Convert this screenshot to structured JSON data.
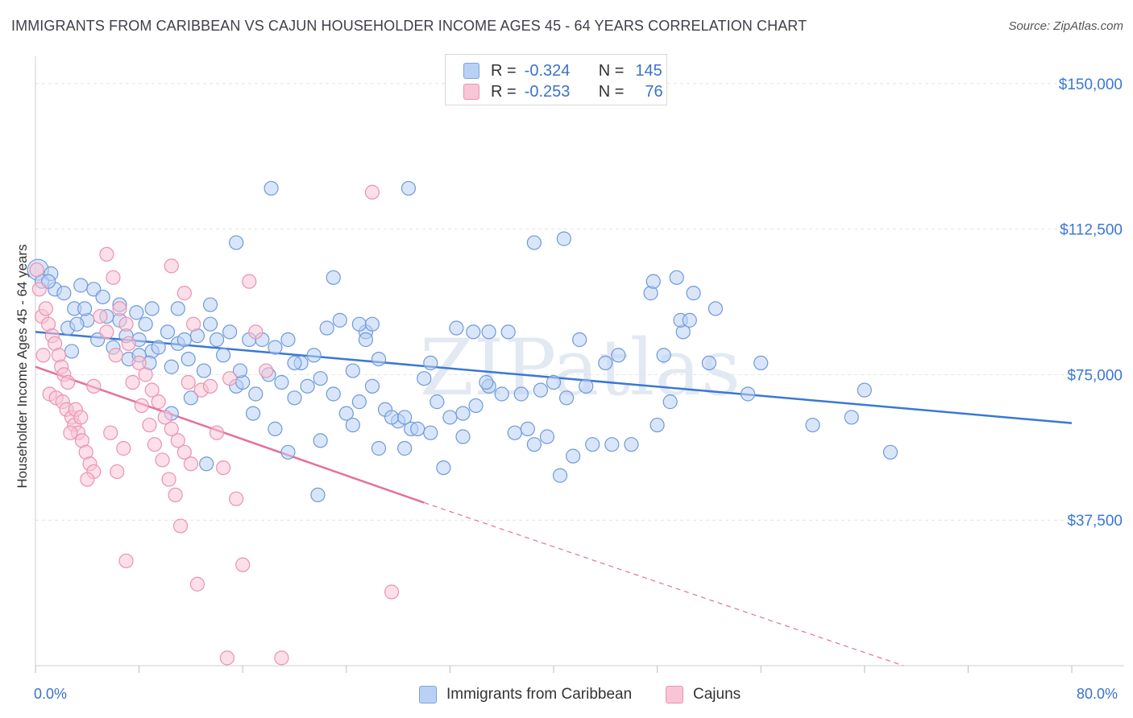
{
  "title": "IMMIGRANTS FROM CARIBBEAN VS CAJUN HOUSEHOLDER INCOME AGES 45 - 64 YEARS CORRELATION CHART",
  "source": "Source: ZipAtlas.com",
  "watermark": "ZIPatlas",
  "legend": {
    "r_label": "R =",
    "n_label": "N =",
    "rows": [
      {
        "r": "-0.324",
        "n": "145",
        "color": "#7ba3de"
      },
      {
        "r": "-0.253",
        "n": "76",
        "color": "#e993b2"
      }
    ]
  },
  "colors": {
    "blue": "#3a78d4",
    "pink": "#e4709a",
    "blue_fill": "#b9d1f5",
    "pink_fill": "#f9c5d6"
  },
  "chart_data": {
    "type": "scatter",
    "ylabel": "Householder Income Ages 45 - 64 years",
    "xlim": [
      0,
      80
    ],
    "ylim": [
      0,
      157000
    ],
    "x_tick_labels": [
      "0.0%",
      "80.0%"
    ],
    "y_ticks": [
      37500,
      75000,
      112500,
      150000
    ],
    "y_tick_labels": [
      "$37,500",
      "$75,000",
      "$112,500",
      "$150,000"
    ],
    "grid": true,
    "series": [
      {
        "name": "Immigrants from Caribbean",
        "color": "#3a78d4",
        "trend": {
          "x": [
            0,
            80
          ],
          "y": [
            86000,
            62500
          ]
        },
        "points": [
          [
            0.2,
            102000
          ],
          [
            0.5,
            99000
          ],
          [
            1.2,
            101000
          ],
          [
            1.5,
            97000
          ],
          [
            1.0,
            99000
          ],
          [
            3.5,
            98000
          ],
          [
            4.5,
            97000
          ],
          [
            5.2,
            95000
          ],
          [
            3.0,
            92000
          ],
          [
            4.0,
            89000
          ],
          [
            5.5,
            90000
          ],
          [
            2.5,
            87000
          ],
          [
            3.2,
            88000
          ],
          [
            6.5,
            89000
          ],
          [
            7.0,
            85000
          ],
          [
            7.8,
            91000
          ],
          [
            8.5,
            88000
          ],
          [
            8.0,
            84000
          ],
          [
            9.0,
            81000
          ],
          [
            10.2,
            86000
          ],
          [
            11.0,
            83000
          ],
          [
            12.5,
            85000
          ],
          [
            13.5,
            88000
          ],
          [
            14.0,
            84000
          ],
          [
            15.0,
            86000
          ],
          [
            16.5,
            84000
          ],
          [
            2.8,
            81000
          ],
          [
            4.8,
            84000
          ],
          [
            6.0,
            82000
          ],
          [
            7.2,
            79000
          ],
          [
            8.8,
            78000
          ],
          [
            10.5,
            77000
          ],
          [
            11.8,
            79000
          ],
          [
            13.0,
            76000
          ],
          [
            14.5,
            80000
          ],
          [
            15.5,
            72000
          ],
          [
            16.0,
            73000
          ],
          [
            17.0,
            70000
          ],
          [
            18.0,
            75000
          ],
          [
            19.0,
            73000
          ],
          [
            20.0,
            69000
          ],
          [
            21.0,
            72000
          ],
          [
            22.0,
            74000
          ],
          [
            23.0,
            70000
          ],
          [
            24.0,
            65000
          ],
          [
            25.0,
            68000
          ],
          [
            26.0,
            72000
          ],
          [
            27.0,
            66000
          ],
          [
            28.0,
            63000
          ],
          [
            29.0,
            61000
          ],
          [
            30.0,
            74000
          ],
          [
            31.0,
            68000
          ],
          [
            32.0,
            64000
          ],
          [
            33.0,
            65000
          ],
          [
            34.0,
            67000
          ],
          [
            35.0,
            72000
          ],
          [
            36.0,
            70000
          ],
          [
            37.0,
            60000
          ],
          [
            38.0,
            61000
          ],
          [
            39.0,
            71000
          ],
          [
            40.0,
            73000
          ],
          [
            41.0,
            69000
          ],
          [
            42.0,
            84000
          ],
          [
            43.0,
            57000
          ],
          [
            44.0,
            78000
          ],
          [
            45.0,
            80000
          ],
          [
            10.5,
            65000
          ],
          [
            12.0,
            69000
          ],
          [
            13.2,
            52000
          ],
          [
            17.5,
            84000
          ],
          [
            18.5,
            82000
          ],
          [
            19.5,
            84000
          ],
          [
            20.5,
            78000
          ],
          [
            21.5,
            80000
          ],
          [
            22.5,
            87000
          ],
          [
            24.5,
            76000
          ],
          [
            25.5,
            86000
          ],
          [
            26.5,
            79000
          ],
          [
            27.5,
            64000
          ],
          [
            28.5,
            64000
          ],
          [
            29.5,
            61000
          ],
          [
            30.5,
            78000
          ],
          [
            31.5,
            51000
          ],
          [
            32.5,
            87000
          ],
          [
            33.8,
            86000
          ],
          [
            34.8,
            73000
          ],
          [
            36.5,
            86000
          ],
          [
            37.5,
            70000
          ],
          [
            38.5,
            57000
          ],
          [
            39.5,
            59000
          ],
          [
            40.5,
            49000
          ],
          [
            41.5,
            54000
          ],
          [
            42.5,
            72000
          ],
          [
            44.5,
            57000
          ],
          [
            46.0,
            57000
          ],
          [
            48.0,
            62000
          ],
          [
            49.0,
            68000
          ],
          [
            50.0,
            86000
          ],
          [
            52.0,
            78000
          ],
          [
            55.0,
            70000
          ],
          [
            60.0,
            62000
          ],
          [
            63.0,
            64000
          ],
          [
            66.0,
            55000
          ],
          [
            15.5,
            109000
          ],
          [
            18.2,
            123000
          ],
          [
            23.0,
            100000
          ],
          [
            28.8,
            123000
          ],
          [
            38.5,
            109000
          ],
          [
            40.8,
            110000
          ],
          [
            47.5,
            96000
          ],
          [
            47.7,
            99000
          ],
          [
            49.5,
            100000
          ],
          [
            49.8,
            89000
          ],
          [
            50.5,
            89000
          ],
          [
            50.8,
            96000
          ],
          [
            52.5,
            92000
          ],
          [
            48.5,
            80000
          ],
          [
            56.0,
            78000
          ],
          [
            64.0,
            71000
          ],
          [
            35.0,
            86000
          ],
          [
            20.0,
            78000
          ],
          [
            23.5,
            89000
          ],
          [
            25.0,
            88000
          ],
          [
            25.5,
            84000
          ],
          [
            26.0,
            88000
          ],
          [
            22.0,
            58000
          ],
          [
            24.5,
            62000
          ],
          [
            26.5,
            56000
          ],
          [
            28.5,
            56000
          ],
          [
            30.5,
            60000
          ],
          [
            33.0,
            59000
          ],
          [
            18.5,
            61000
          ],
          [
            19.5,
            55000
          ],
          [
            21.8,
            44000
          ],
          [
            16.8,
            65000
          ],
          [
            15.8,
            76000
          ],
          [
            13.5,
            93000
          ],
          [
            11.0,
            92000
          ],
          [
            9.0,
            92000
          ],
          [
            6.5,
            93000
          ],
          [
            3.8,
            92000
          ],
          [
            2.2,
            96000
          ],
          [
            8.0,
            80000
          ],
          [
            9.5,
            82000
          ],
          [
            11.5,
            84000
          ]
        ]
      },
      {
        "name": "Cajuns",
        "color": "#e4709a",
        "trend": {
          "x": [
            0,
            30
          ],
          "y": [
            77000,
            42000
          ]
        },
        "trend_dashed": {
          "x": [
            30,
            67
          ],
          "y": [
            42000,
            -3000
          ]
        },
        "points": [
          [
            0.1,
            102000
          ],
          [
            0.3,
            97000
          ],
          [
            0.5,
            90000
          ],
          [
            0.8,
            92000
          ],
          [
            1.0,
            88000
          ],
          [
            1.3,
            85000
          ],
          [
            1.5,
            83000
          ],
          [
            1.8,
            80000
          ],
          [
            2.0,
            77000
          ],
          [
            2.2,
            75000
          ],
          [
            2.5,
            73000
          ],
          [
            0.6,
            80000
          ],
          [
            1.1,
            70000
          ],
          [
            1.6,
            69000
          ],
          [
            2.1,
            68000
          ],
          [
            2.4,
            66000
          ],
          [
            2.8,
            64000
          ],
          [
            3.0,
            62000
          ],
          [
            3.3,
            60000
          ],
          [
            3.6,
            58000
          ],
          [
            3.9,
            55000
          ],
          [
            4.2,
            52000
          ],
          [
            4.5,
            50000
          ],
          [
            4.0,
            48000
          ],
          [
            2.7,
            60000
          ],
          [
            3.1,
            66000
          ],
          [
            3.5,
            64000
          ],
          [
            5.5,
            106000
          ],
          [
            5.0,
            90000
          ],
          [
            6.0,
            100000
          ],
          [
            6.5,
            92000
          ],
          [
            7.0,
            88000
          ],
          [
            7.2,
            83000
          ],
          [
            8.0,
            78000
          ],
          [
            8.5,
            75000
          ],
          [
            9.0,
            71000
          ],
          [
            9.5,
            68000
          ],
          [
            10.0,
            64000
          ],
          [
            10.5,
            61000
          ],
          [
            11.0,
            58000
          ],
          [
            11.5,
            55000
          ],
          [
            12.0,
            52000
          ],
          [
            5.5,
            86000
          ],
          [
            6.2,
            80000
          ],
          [
            7.5,
            73000
          ],
          [
            8.2,
            67000
          ],
          [
            8.8,
            62000
          ],
          [
            9.2,
            57000
          ],
          [
            9.8,
            53000
          ],
          [
            10.3,
            48000
          ],
          [
            10.8,
            44000
          ],
          [
            11.2,
            36000
          ],
          [
            6.8,
            56000
          ],
          [
            6.3,
            50000
          ],
          [
            7.0,
            27000
          ],
          [
            10.5,
            103000
          ],
          [
            11.5,
            96000
          ],
          [
            11.8,
            73000
          ],
          [
            12.2,
            88000
          ],
          [
            12.8,
            71000
          ],
          [
            13.5,
            72000
          ],
          [
            14.0,
            60000
          ],
          [
            14.5,
            51000
          ],
          [
            15.0,
            74000
          ],
          [
            15.5,
            43000
          ],
          [
            16.5,
            99000
          ],
          [
            17.0,
            86000
          ],
          [
            17.8,
            76000
          ],
          [
            16.0,
            26000
          ],
          [
            12.5,
            21000
          ],
          [
            14.8,
            2000
          ],
          [
            19.0,
            2000
          ],
          [
            26.0,
            122000
          ],
          [
            27.5,
            19000
          ],
          [
            4.5,
            72000
          ],
          [
            5.8,
            60000
          ]
        ]
      }
    ]
  },
  "bottom_legend": [
    "Immigrants from Caribbean",
    "Cajuns"
  ]
}
